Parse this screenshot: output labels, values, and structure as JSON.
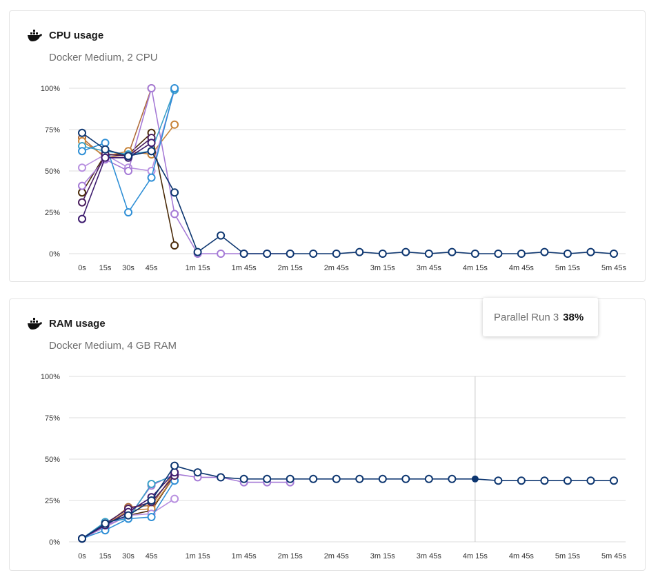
{
  "colors": {
    "navy": "#0d3670",
    "purple": "#3d1b6e",
    "plum": "#4a1e5e",
    "blue": "#2f8fd6",
    "lavender": "#a57ad6",
    "orange": "#c8843a",
    "brown": "#4a2a08",
    "teal": "#3aa0c8"
  },
  "chart_data": [
    {
      "type": "line",
      "title": "CPU usage",
      "subtitle": "Docker Medium, 2 CPU",
      "icon": "docker-whale-icon",
      "ylim": [
        0,
        100
      ],
      "y_ticks": [
        "100%",
        "75%",
        "50%",
        "25%",
        "0%"
      ],
      "y_tick_values": [
        100,
        75,
        50,
        25,
        0
      ],
      "x_tick_labels": [
        "0s",
        "15s",
        "30s",
        "45s",
        "1m 15s",
        "1m 45s",
        "2m 15s",
        "2m 45s",
        "3m 15s",
        "3m 45s",
        "4m 15s",
        "4m 45s",
        "5m 15s",
        "5m 45s"
      ],
      "x_tick_values": [
        0,
        15,
        30,
        45,
        75,
        105,
        135,
        165,
        195,
        225,
        255,
        285,
        315,
        345
      ],
      "grid": true,
      "series": [
        {
          "color": "#0d3670",
          "x": [
            0,
            15,
            30,
            45,
            60,
            75,
            90,
            105,
            120,
            135,
            150,
            165,
            180,
            195,
            210,
            225,
            240,
            255,
            270,
            285,
            300,
            315,
            330,
            345
          ],
          "values": [
            73,
            63,
            59,
            62,
            37,
            1,
            11,
            0,
            0,
            0,
            0,
            0,
            1,
            0,
            1,
            0,
            1,
            0,
            0,
            0,
            1,
            0,
            1,
            0
          ]
        },
        {
          "color": "#3d1b6e",
          "x": [
            0,
            15,
            30,
            45
          ],
          "values": [
            21,
            58,
            58,
            67
          ]
        },
        {
          "color": "#4a1e5e",
          "x": [
            0,
            15,
            30,
            45
          ],
          "values": [
            31,
            60,
            59,
            70
          ]
        },
        {
          "color": "#2f8fd6",
          "x": [
            0,
            15,
            30,
            45,
            60
          ],
          "values": [
            62,
            67,
            25,
            46,
            100
          ]
        },
        {
          "color": "#3aa0c8",
          "x": [
            0,
            15,
            30,
            45,
            60
          ],
          "values": [
            65,
            62,
            60,
            62,
            99
          ]
        },
        {
          "color": "#a57ad6",
          "x": [
            0,
            15,
            30,
            45,
            60,
            75,
            90,
            105,
            120,
            135
          ],
          "values": [
            41,
            57,
            50,
            100,
            24,
            0,
            0,
            0,
            0,
            0
          ]
        },
        {
          "color": "#b890e0",
          "x": [
            0,
            15,
            30,
            45,
            60
          ],
          "values": [
            52,
            60,
            52,
            50,
            99
          ]
        },
        {
          "color": "#c8843a",
          "x": [
            0,
            15,
            30,
            45,
            60
          ],
          "values": [
            68,
            59,
            62,
            60,
            78
          ]
        },
        {
          "color": "#b06c3a",
          "x": [
            0,
            15,
            30,
            45
          ],
          "values": [
            70,
            58,
            60,
            100
          ]
        },
        {
          "color": "#4a2a08",
          "x": [
            0,
            15,
            30,
            45,
            60
          ],
          "values": [
            37,
            60,
            60,
            73,
            5
          ]
        }
      ]
    },
    {
      "type": "line",
      "title": "RAM usage",
      "subtitle": "Docker Medium, 4 GB RAM",
      "icon": "docker-whale-icon",
      "ylim": [
        0,
        100
      ],
      "y_ticks": [
        "100%",
        "75%",
        "50%",
        "25%",
        "0%"
      ],
      "y_tick_values": [
        100,
        75,
        50,
        25,
        0
      ],
      "x_tick_labels": [
        "0s",
        "15s",
        "30s",
        "45s",
        "1m 15s",
        "1m 45s",
        "2m 15s",
        "2m 45s",
        "3m 15s",
        "3m 45s",
        "4m 15s",
        "4m 45s",
        "5m 15s",
        "5m 45s"
      ],
      "x_tick_values": [
        0,
        15,
        30,
        45,
        75,
        105,
        135,
        165,
        195,
        225,
        255,
        285,
        315,
        345
      ],
      "grid": true,
      "crosshair_x": 255,
      "highlight": {
        "series_index": 0,
        "x": 255
      },
      "series": [
        {
          "color": "#0d3670",
          "x": [
            0,
            15,
            30,
            45,
            60,
            75,
            90,
            105,
            120,
            135,
            150,
            165,
            180,
            195,
            210,
            225,
            240,
            255,
            270,
            285,
            300,
            315,
            330,
            345
          ],
          "values": [
            2,
            11,
            16,
            25,
            46,
            42,
            39,
            38,
            38,
            38,
            38,
            38,
            38,
            38,
            38,
            38,
            38,
            38,
            37,
            37,
            37,
            37,
            37,
            37
          ]
        },
        {
          "color": "#3d1b6e",
          "x": [
            0,
            15,
            30,
            45,
            60
          ],
          "values": [
            2,
            10,
            18,
            27,
            42
          ]
        },
        {
          "color": "#4a1e5e",
          "x": [
            0,
            15,
            30,
            45,
            60
          ],
          "values": [
            2,
            11,
            20,
            24,
            40
          ]
        },
        {
          "color": "#2f8fd6",
          "x": [
            0,
            15,
            30,
            45,
            60
          ],
          "values": [
            2,
            7,
            14,
            15,
            37
          ]
        },
        {
          "color": "#3aa0c8",
          "x": [
            0,
            15,
            30,
            45,
            60
          ],
          "values": [
            2,
            12,
            14,
            35,
            40
          ]
        },
        {
          "color": "#a57ad6",
          "x": [
            0,
            15,
            30,
            45,
            60,
            75,
            90,
            105,
            120,
            135
          ],
          "values": [
            2,
            10,
            15,
            34,
            41,
            39,
            39,
            36,
            36,
            36
          ]
        },
        {
          "color": "#b890e0",
          "x": [
            0,
            15,
            30,
            45,
            60
          ],
          "values": [
            2,
            9,
            16,
            17,
            26
          ]
        },
        {
          "color": "#c8843a",
          "x": [
            0,
            15,
            30,
            45,
            60
          ],
          "values": [
            2,
            10,
            19,
            20,
            40
          ]
        },
        {
          "color": "#b06c3a",
          "x": [
            0,
            15,
            30,
            45,
            60
          ],
          "values": [
            2,
            10,
            21,
            22,
            42
          ]
        },
        {
          "color": "#4a2a08",
          "x": [
            0,
            15,
            30,
            45,
            60
          ],
          "values": [
            2,
            9,
            16,
            19,
            40
          ]
        }
      ]
    }
  ],
  "tooltip": {
    "label": "Parallel Run 3",
    "value": "38%"
  }
}
